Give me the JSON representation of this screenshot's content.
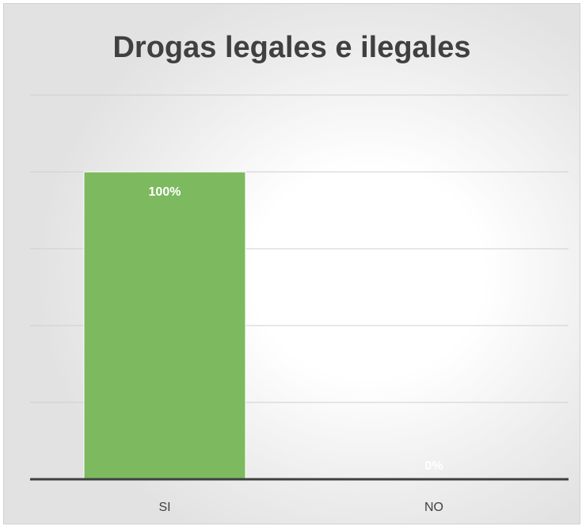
{
  "chart_data": {
    "type": "bar",
    "title": "Drogas legales e ilegales",
    "categories": [
      "SI",
      "NO"
    ],
    "values": [
      100,
      0
    ],
    "data_labels": [
      "100%",
      "0%"
    ],
    "ylim": [
      0,
      125
    ],
    "grid": true,
    "legend": "none",
    "bar_color": "#7cb95f"
  }
}
